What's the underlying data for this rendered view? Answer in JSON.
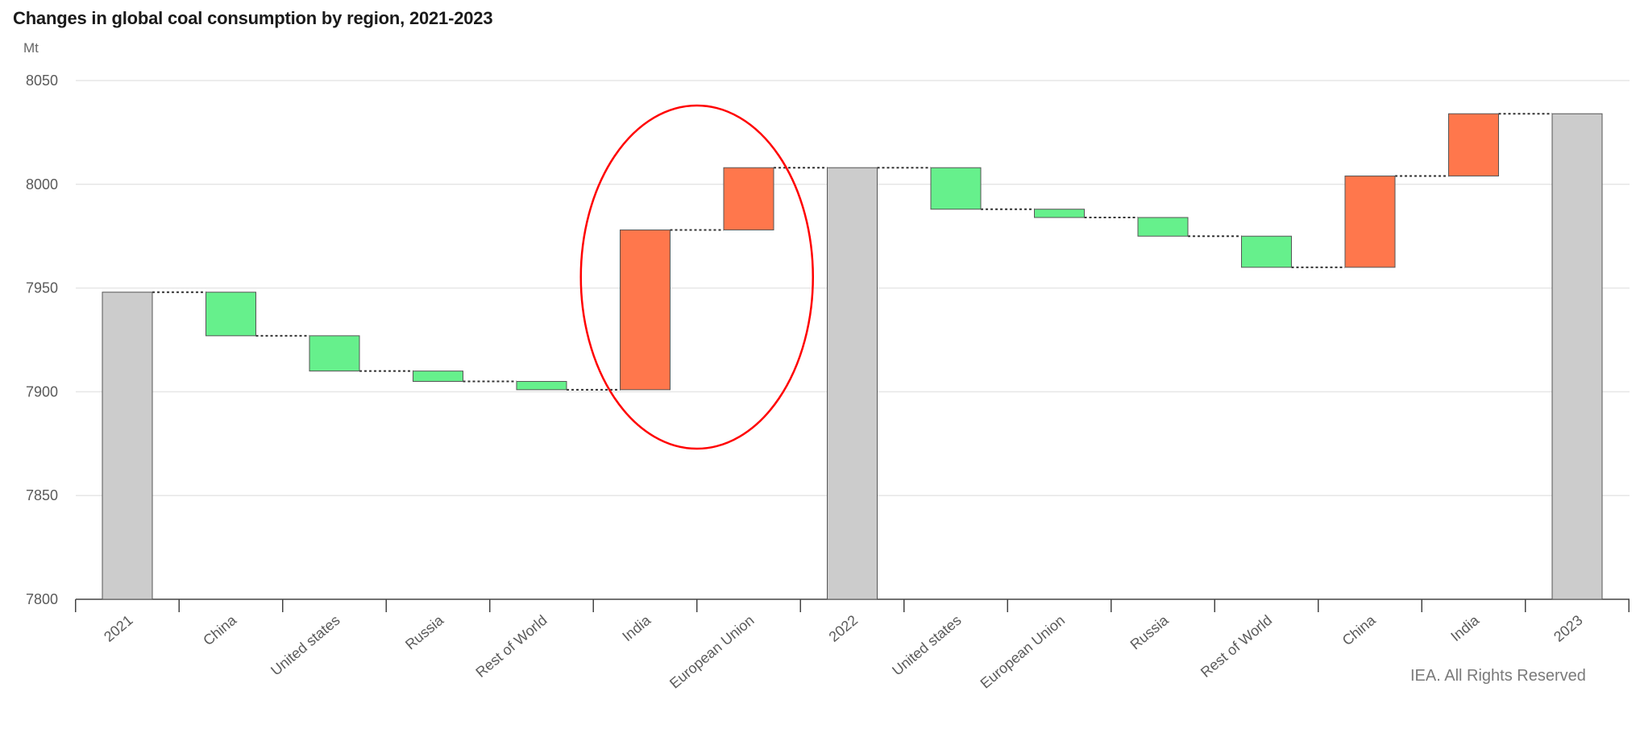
{
  "title": "Changes in global coal consumption by region, 2021-2023",
  "credit": "IEA. All Rights Reserved",
  "colors": {
    "total": "#cccccc",
    "decrease": "#66f08c",
    "increase": "#ff774c",
    "highlight": "#ff0000",
    "grid": "#e6e6e6",
    "axis": "#444444"
  },
  "chart_data": {
    "type": "bar",
    "subtype": "waterfall",
    "title": "Changes in global coal consumption by region, 2021-2023",
    "ylabel": "Mt",
    "ylim": [
      7800,
      8050
    ],
    "yticks": [
      7800,
      7850,
      7900,
      7950,
      8000,
      8050
    ],
    "grid": true,
    "categories": [
      "2021",
      "China",
      "United states",
      "Russia",
      "Rest of World",
      "India",
      "European Union",
      "2022",
      "United states",
      "European Union",
      "Russia",
      "Rest of World",
      "China",
      "India",
      "2023"
    ],
    "bars": [
      {
        "category": "2021",
        "kind": "total",
        "start": 7800,
        "end": 7948
      },
      {
        "category": "China",
        "kind": "decrease",
        "start": 7948,
        "end": 7927
      },
      {
        "category": "United states",
        "kind": "decrease",
        "start": 7927,
        "end": 7910
      },
      {
        "category": "Russia",
        "kind": "decrease",
        "start": 7910,
        "end": 7905
      },
      {
        "category": "Rest of World",
        "kind": "decrease",
        "start": 7905,
        "end": 7901
      },
      {
        "category": "India",
        "kind": "increase",
        "start": 7901,
        "end": 7978
      },
      {
        "category": "European Union",
        "kind": "increase",
        "start": 7978,
        "end": 8008
      },
      {
        "category": "2022",
        "kind": "total",
        "start": 7800,
        "end": 8008
      },
      {
        "category": "United states",
        "kind": "decrease",
        "start": 8008,
        "end": 7988
      },
      {
        "category": "European Union",
        "kind": "decrease",
        "start": 7988,
        "end": 7984
      },
      {
        "category": "Russia",
        "kind": "decrease",
        "start": 7984,
        "end": 7975
      },
      {
        "category": "Rest of World",
        "kind": "decrease",
        "start": 7975,
        "end": 7960
      },
      {
        "category": "China",
        "kind": "increase",
        "start": 7960,
        "end": 8004
      },
      {
        "category": "India",
        "kind": "increase",
        "start": 8004,
        "end": 8034
      },
      {
        "category": "2023",
        "kind": "total",
        "start": 7800,
        "end": 8034
      }
    ],
    "annotations": [
      {
        "type": "ellipse",
        "around": [
          "India",
          "European Union"
        ],
        "color": "#ff0000"
      }
    ]
  }
}
